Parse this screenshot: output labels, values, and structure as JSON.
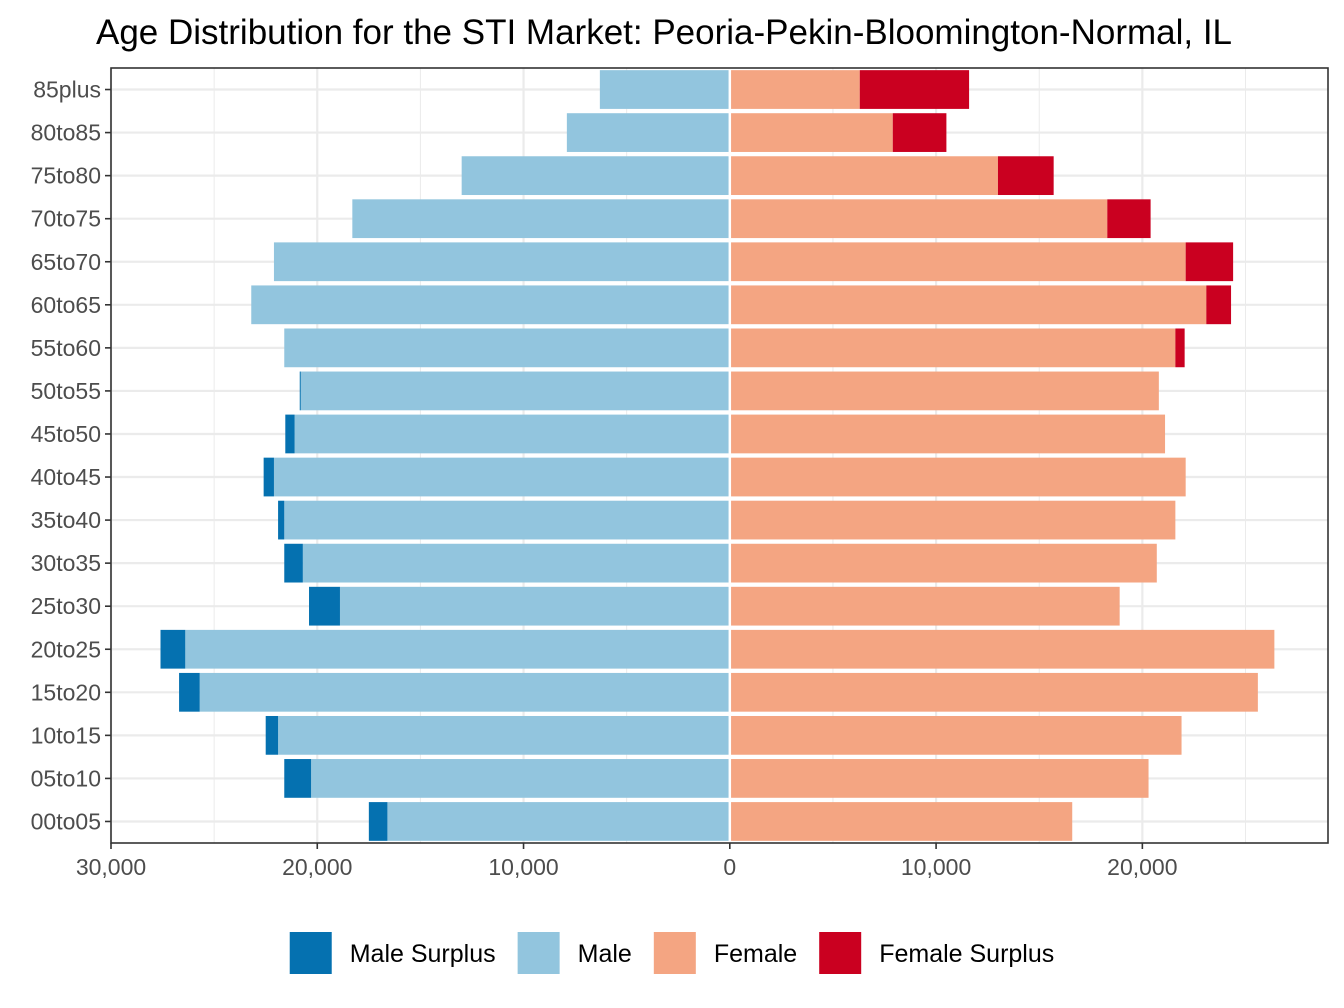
{
  "chart_data": {
    "type": "bar",
    "orientation": "horizontal",
    "layout": "population-pyramid",
    "title": "Age Distribution for the STI Market: Peoria-Pekin-Bloomington-Normal, IL",
    "xlabel": "",
    "ylabel": "",
    "categories": [
      "00to05",
      "05to10",
      "10to15",
      "15to20",
      "20to25",
      "25to30",
      "30to35",
      "35to40",
      "40to45",
      "45to50",
      "50to55",
      "55to60",
      "60to65",
      "65to70",
      "70to75",
      "75to80",
      "80to85",
      "85plus"
    ],
    "x_ticks": [
      -30000,
      -20000,
      -10000,
      0,
      10000,
      20000
    ],
    "x_tick_labels": [
      "30,000",
      "20,000",
      "10,000",
      "0",
      "10,000",
      "20,000"
    ],
    "xlim": [
      -30000,
      29000
    ],
    "grid": true,
    "legend_position": "bottom",
    "series": [
      {
        "name": "Male Surplus",
        "color": "#0571b0",
        "side": "left",
        "stacked_outside": "Male",
        "values": [
          900,
          1300,
          600,
          1000,
          1200,
          1500,
          900,
          300,
          500,
          450,
          50,
          0,
          0,
          0,
          0,
          0,
          0,
          0
        ]
      },
      {
        "name": "Male",
        "color": "#92c5de",
        "side": "left",
        "values": [
          16600,
          20300,
          21900,
          25700,
          26400,
          18900,
          20700,
          21600,
          22100,
          21100,
          20800,
          21600,
          23200,
          22100,
          18300,
          13000,
          7900,
          6300
        ]
      },
      {
        "name": "Female",
        "color": "#f4a582",
        "side": "right",
        "values": [
          16600,
          20300,
          21900,
          25600,
          26400,
          18900,
          20700,
          21600,
          22100,
          21100,
          20800,
          21600,
          23100,
          22100,
          18300,
          13000,
          7900,
          6300
        ]
      },
      {
        "name": "Female Surplus",
        "color": "#ca0020",
        "side": "right",
        "stacked_outside": "Female",
        "values": [
          0,
          0,
          0,
          0,
          0,
          0,
          0,
          0,
          0,
          0,
          0,
          450,
          1200,
          2300,
          2100,
          2700,
          2600,
          5300
        ]
      }
    ]
  }
}
